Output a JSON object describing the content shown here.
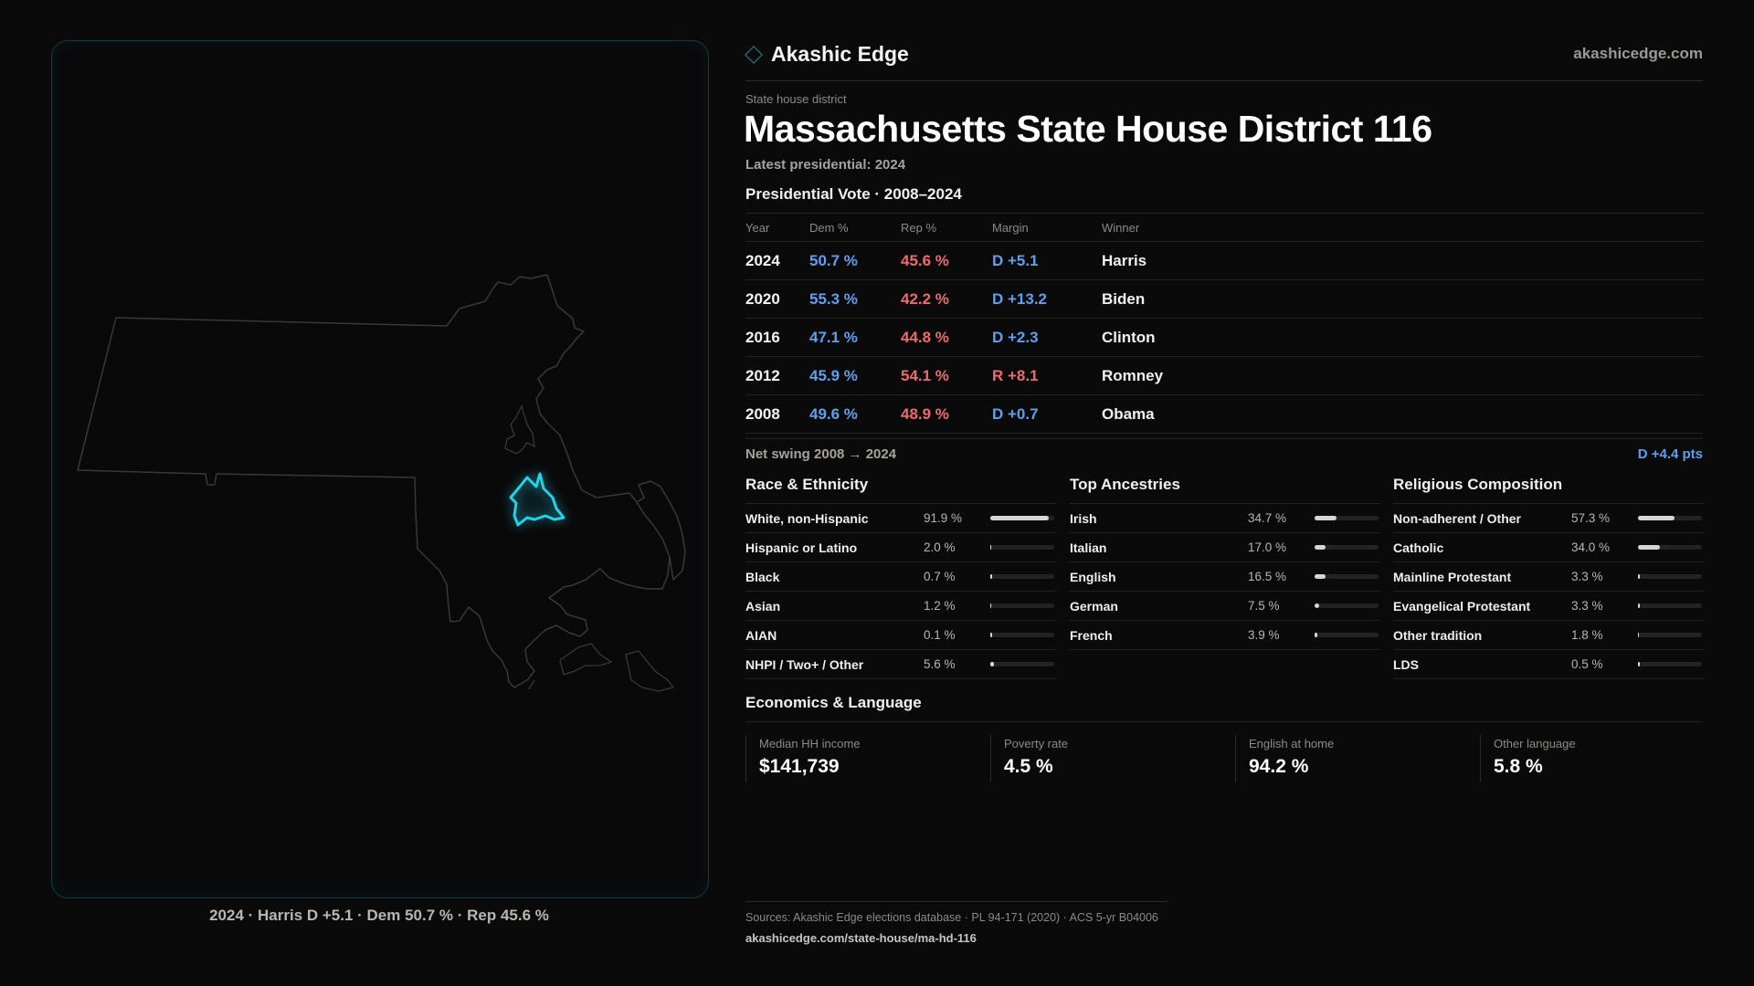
{
  "header": {
    "brand_icon": "diamond-icon",
    "brand_name": "Akashic Edge",
    "site_link": "akashicedge.com"
  },
  "district": {
    "kicker": "State house district",
    "title": "Massachusetts State House District 116",
    "subtitle": "Latest presidential: 2024"
  },
  "map": {
    "caption": "2024 · Harris D +5.1 · Dem 50.7 % · Rep 45.6 %",
    "highlight_color": "#23d3ea",
    "outline_color": "#3a3a3e"
  },
  "vote_section": {
    "heading": "Presidential Vote · 2008–2024",
    "columns": [
      "Year",
      "Dem %",
      "Rep %",
      "Margin",
      "Winner"
    ],
    "rows": [
      {
        "year": "2024",
        "dem": "50.7 %",
        "rep": "45.6 %",
        "margin": "D +5.1",
        "winner": "Harris",
        "party": "D"
      },
      {
        "year": "2020",
        "dem": "55.3 %",
        "rep": "42.2 %",
        "margin": "D +13.2",
        "winner": "Biden",
        "party": "D"
      },
      {
        "year": "2016",
        "dem": "47.1 %",
        "rep": "44.8 %",
        "margin": "D +2.3",
        "winner": "Clinton",
        "party": "D"
      },
      {
        "year": "2012",
        "dem": "45.9 %",
        "rep": "54.1 %",
        "margin": "R +8.1",
        "winner": "Romney",
        "party": "R"
      },
      {
        "year": "2008",
        "dem": "49.6 %",
        "rep": "48.9 %",
        "margin": "D +0.7",
        "winner": "Obama",
        "party": "D"
      }
    ],
    "swing_label": "Net swing 2008 → 2024",
    "swing_value": "D +4.4 pts"
  },
  "colors": {
    "dem": "#5f9ff0",
    "rep": "#ee6b6b",
    "accent": "#23d3ea"
  },
  "race": {
    "heading": "Race & Ethnicity",
    "rows": [
      {
        "label": "White, non-Hispanic",
        "value": "91.9 %",
        "pct": 91.9
      },
      {
        "label": "Hispanic or Latino",
        "value": "2.0 %",
        "pct": 2.0
      },
      {
        "label": "Black",
        "value": "0.7 %",
        "pct": 0.7
      },
      {
        "label": "Asian",
        "value": "1.2 %",
        "pct": 1.2
      },
      {
        "label": "AIAN",
        "value": "0.1 %",
        "pct": 0.1
      },
      {
        "label": "NHPI / Two+ / Other",
        "value": "5.6 %",
        "pct": 5.6
      }
    ]
  },
  "ancestry": {
    "heading": "Top Ancestries",
    "rows": [
      {
        "label": "Irish",
        "value": "34.7 %",
        "pct": 34.7
      },
      {
        "label": "Italian",
        "value": "17.0 %",
        "pct": 17.0
      },
      {
        "label": "English",
        "value": "16.5 %",
        "pct": 16.5
      },
      {
        "label": "German",
        "value": "7.5 %",
        "pct": 7.5
      },
      {
        "label": "French",
        "value": "3.9 %",
        "pct": 3.9
      }
    ]
  },
  "religion": {
    "heading": "Religious Composition",
    "rows": [
      {
        "label": "Non-adherent / Other",
        "value": "57.3 %",
        "pct": 57.3
      },
      {
        "label": "Catholic",
        "value": "34.0 %",
        "pct": 34.0
      },
      {
        "label": "Mainline Protestant",
        "value": "3.3 %",
        "pct": 3.3
      },
      {
        "label": "Evangelical Protestant",
        "value": "3.3 %",
        "pct": 3.3
      },
      {
        "label": "Other tradition",
        "value": "1.8 %",
        "pct": 1.8
      },
      {
        "label": "LDS",
        "value": "0.5 %",
        "pct": 0.5
      }
    ]
  },
  "economics": {
    "heading": "Economics & Language",
    "cards": [
      {
        "label": "Median HH income",
        "value": "$141,739"
      },
      {
        "label": "Poverty rate",
        "value": "4.5 %"
      },
      {
        "label": "English at home",
        "value": "94.2 %"
      },
      {
        "label": "Other language",
        "value": "5.8 %"
      }
    ]
  },
  "footer": {
    "sources": "Sources: Akashic Edge elections database · PL 94-171 (2020) · ACS 5-yr B04006",
    "url": "akashicedge.com/state-house/ma-hd-116"
  }
}
